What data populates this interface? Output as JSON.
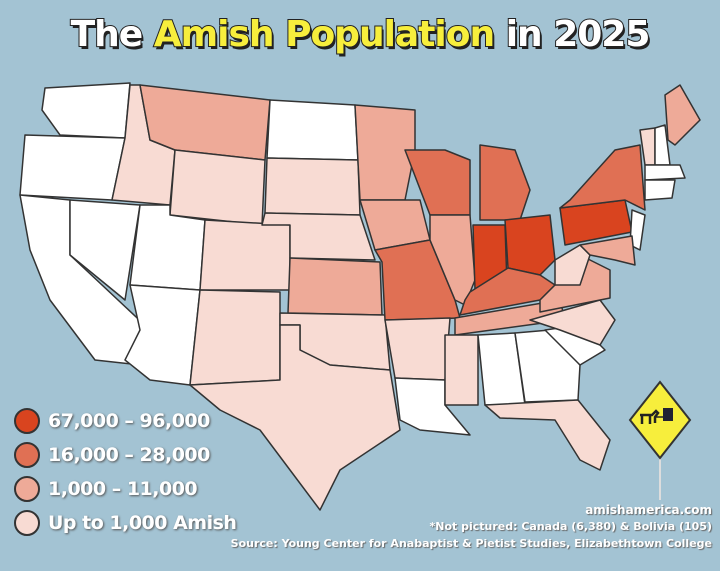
{
  "title": {
    "part1": "The",
    "highlight": "Amish Population",
    "part2": "in 2025"
  },
  "colors": {
    "ocean": "#a3c3d3",
    "tier1": "#d9441f",
    "tier2": "#e07054",
    "tier3": "#eeaa98",
    "tier4": "#f8dbd3",
    "none": "#ffffff",
    "sign": "#f7ee3c"
  },
  "legend": [
    {
      "label": "67,000 – 96,000",
      "tier": "tier1"
    },
    {
      "label": "16,000 – 28,000",
      "tier": "tier2"
    },
    {
      "label": "1,000 – 11,000",
      "tier": "tier3"
    },
    {
      "label": "Up to 1,000 Amish",
      "tier": "tier4"
    }
  ],
  "states": {
    "WA": "none",
    "OR": "none",
    "CA": "none",
    "NV": "none",
    "ID": "tier4",
    "MT": "tier3",
    "WY": "tier4",
    "UT": "none",
    "AZ": "none",
    "CO": "tier4",
    "NM": "tier4",
    "ND": "none",
    "SD": "tier4",
    "NE": "tier4",
    "KS": "tier3",
    "OK": "tier4",
    "TX": "tier4",
    "MN": "tier3",
    "IA": "tier3",
    "MO": "tier2",
    "AR": "tier4",
    "LA": "none",
    "WI": "tier2",
    "IL": "tier3",
    "MI": "tier2",
    "IN": "tier1",
    "OH": "tier1",
    "KY": "tier2",
    "TN": "tier3",
    "MS": "tier4",
    "AL": "none",
    "GA": "none",
    "FL": "tier4",
    "SC": "none",
    "NC": "tier4",
    "VA": "tier3",
    "WV": "tier4",
    "PA": "tier1",
    "NY": "tier2",
    "NJ": "none",
    "MD": "tier3",
    "ME": "tier3",
    "VT": "tier4",
    "NH": "none",
    "MA": "none",
    "CT": "none"
  },
  "sign_icon": "horse-and-buggy-road-sign",
  "footer": {
    "website": "amishamerica.com",
    "note": "*Not pictured: Canada (6,380) & Bolivia (105)",
    "source": "Source: Young Center for Anabaptist & Pietist Studies, Elizabethtown College"
  }
}
